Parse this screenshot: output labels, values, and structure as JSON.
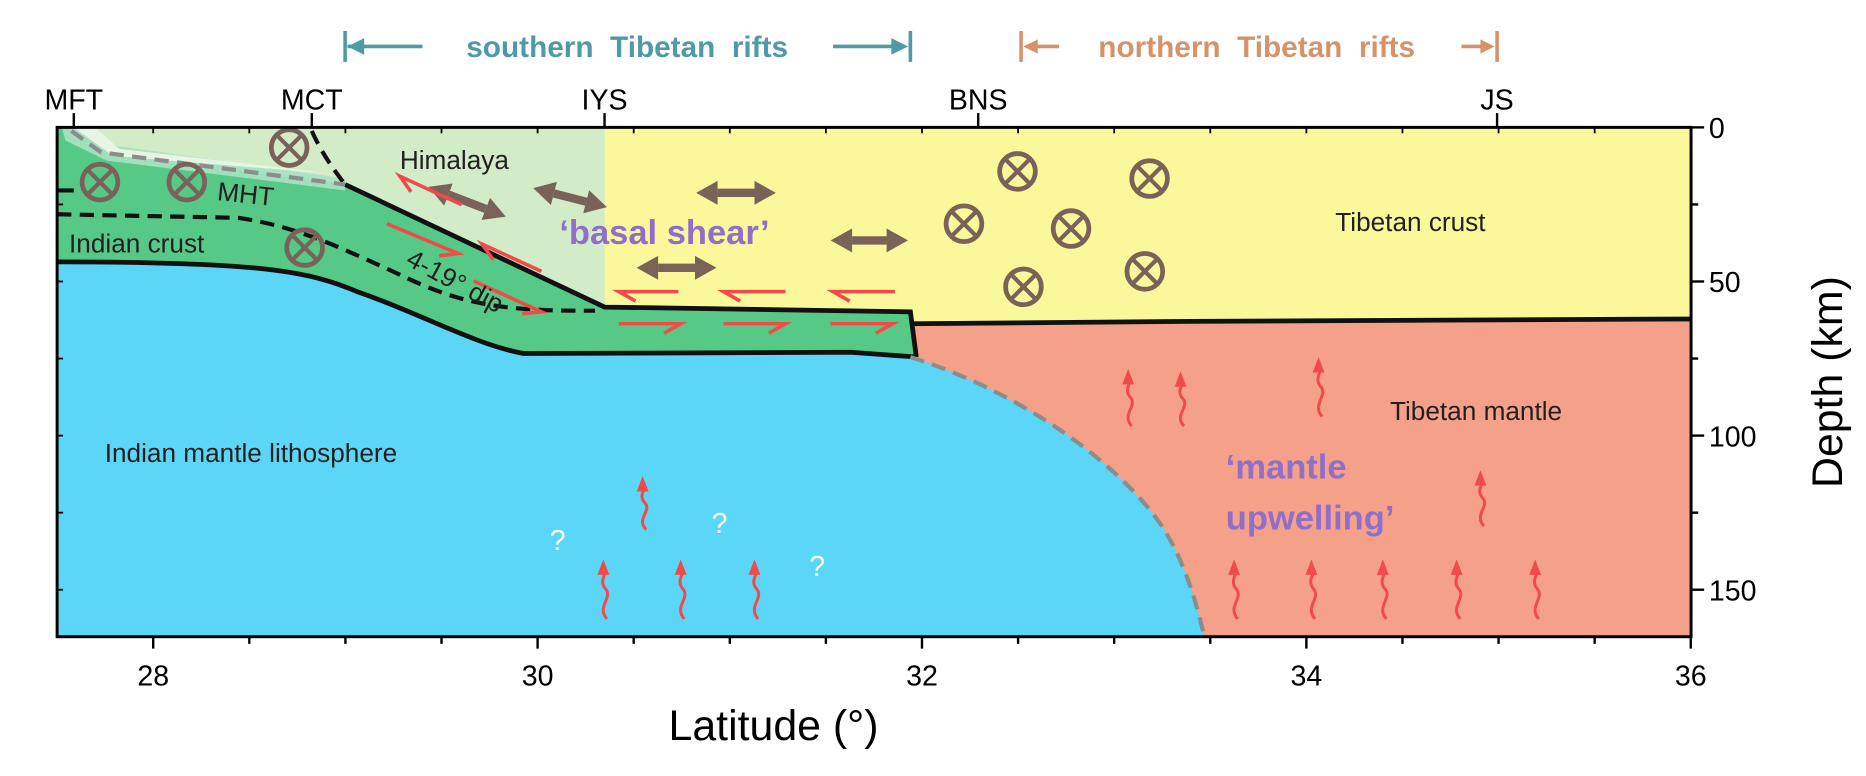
{
  "header": {
    "southern_rifts": "southern  Tibetan  rifts",
    "northern_rifts": "northern  Tibetan  rifts"
  },
  "faults": [
    "MFT",
    "MCT",
    "IYS",
    "BNS",
    "JS"
  ],
  "labels": {
    "himalaya": "Himalaya",
    "mht": "MHT",
    "indian_crust": "Indian crust",
    "dip": "4-19° dip",
    "basal_shear": "‘basal shear’",
    "tibetan_crust": "Tibetan crust",
    "tibetan_mantle": "Tibetan mantle",
    "indian_mantle": "Indian mantle lithosphere",
    "mantle_upwelling_1": "‘mantle",
    "mantle_upwelling_2": "upwelling’",
    "question": "?"
  },
  "axes": {
    "x_ticks": [
      "28",
      "30",
      "32",
      "34",
      "36"
    ],
    "x_label": "Latitude (°)",
    "y_ticks": [
      "0",
      "50",
      "100",
      "150"
    ],
    "y_label": "Depth (km)"
  },
  "colors": {
    "southern": "#4e9aa6",
    "northern": "#d4936b",
    "indian_mantle": "#5bd6f7",
    "tibetan_mantle": "#f5a088",
    "tibetan_crust": "#fbf79b",
    "himalaya": "#d3ecc8",
    "indian_crust": "#56c987",
    "purple": "#8f6fc9",
    "brown": "#7a6258",
    "red": "#f24a4a"
  }
}
